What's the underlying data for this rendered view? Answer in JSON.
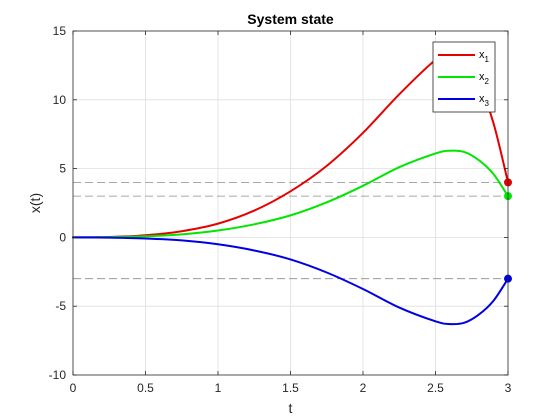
{
  "chart_data": {
    "type": "line",
    "title": "System state",
    "xlabel": "t",
    "ylabel": "x(t)",
    "xlim": [
      0,
      3
    ],
    "ylim": [
      -10,
      15
    ],
    "xticks": [
      0,
      0.5,
      1,
      1.5,
      2,
      2.5,
      3
    ],
    "xtick_labels": [
      "0",
      "0.5",
      "1",
      "1.5",
      "2",
      "2.5",
      "3"
    ],
    "yticks": [
      -10,
      -5,
      0,
      5,
      10,
      15
    ],
    "ytick_labels": [
      "-10",
      "-5",
      "0",
      "5",
      "10",
      "15"
    ],
    "grid": true,
    "legend": {
      "position": "top-right",
      "entries": [
        {
          "base": "x",
          "sub": "1"
        },
        {
          "base": "x",
          "sub": "2"
        },
        {
          "base": "x",
          "sub": "3"
        }
      ]
    },
    "x": [
      0,
      0.25,
      0.5,
      0.75,
      1.0,
      1.25,
      1.5,
      1.75,
      2.0,
      2.25,
      2.5,
      2.6,
      2.7,
      2.8,
      2.9,
      3.0
    ],
    "series": [
      {
        "color": "#e60000",
        "values": [
          0,
          0.03,
          0.16,
          0.45,
          1.0,
          1.95,
          3.35,
          5.2,
          7.6,
          10.4,
          12.9,
          13.4,
          13.0,
          11.2,
          8.3,
          4.0
        ]
      },
      {
        "color": "#00e600",
        "values": [
          0,
          0.02,
          0.08,
          0.22,
          0.5,
          0.95,
          1.6,
          2.55,
          3.75,
          5.1,
          6.1,
          6.3,
          6.2,
          5.6,
          4.6,
          3.0
        ]
      },
      {
        "color": "#0000e6",
        "values": [
          0,
          -0.02,
          -0.08,
          -0.22,
          -0.5,
          -0.95,
          -1.6,
          -2.55,
          -3.75,
          -5.1,
          -6.1,
          -6.3,
          -6.2,
          -5.6,
          -4.6,
          -3.0
        ]
      }
    ],
    "endpoints": [
      {
        "x": 3.0,
        "y": 4.0,
        "color": "#e60000"
      },
      {
        "x": 3.0,
        "y": 3.0,
        "color": "#00e600"
      },
      {
        "x": 3.0,
        "y": -3.0,
        "color": "#0000e6"
      }
    ],
    "reference_lines": [
      4,
      3,
      -3
    ]
  }
}
